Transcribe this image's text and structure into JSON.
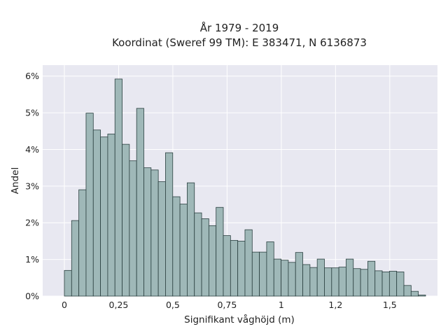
{
  "chart_data": {
    "type": "bar",
    "title_line1": "År 1979 - 2019",
    "title_line2": "Koordinat (Sweref 99 TM): E 383471, N 6136873",
    "xlabel": "Signifikant våghöjd (m)",
    "ylabel": "Andel",
    "xlim": [
      -0.1,
      1.72
    ],
    "ylim": [
      0,
      6.3
    ],
    "bin_width": 0.0333,
    "bin_start": 0.0,
    "x_ticks": [
      {
        "value": 0,
        "label": "0"
      },
      {
        "value": 0.25,
        "label": "0,25"
      },
      {
        "value": 0.5,
        "label": "0,5"
      },
      {
        "value": 0.75,
        "label": "0,75"
      },
      {
        "value": 1.0,
        "label": "1"
      },
      {
        "value": 1.25,
        "label": "1,2"
      },
      {
        "value": 1.5,
        "label": "1,5"
      }
    ],
    "y_ticks": [
      {
        "value": 0,
        "label": "0%"
      },
      {
        "value": 1,
        "label": "1%"
      },
      {
        "value": 2,
        "label": "2%"
      },
      {
        "value": 3,
        "label": "3%"
      },
      {
        "value": 4,
        "label": "4%"
      },
      {
        "value": 5,
        "label": "5%"
      },
      {
        "value": 6,
        "label": "6%"
      }
    ],
    "values": [
      0.7,
      2.06,
      2.9,
      4.99,
      4.53,
      4.34,
      4.42,
      5.92,
      4.14,
      3.69,
      5.12,
      3.5,
      3.44,
      3.12,
      3.91,
      2.71,
      2.51,
      3.09,
      2.27,
      2.11,
      1.92,
      2.42,
      1.65,
      1.52,
      1.5,
      1.81,
      1.2,
      1.2,
      1.48,
      1.01,
      0.98,
      0.92,
      1.19,
      0.86,
      0.78,
      1.01,
      0.77,
      0.77,
      0.79,
      1.01,
      0.75,
      0.73,
      0.95,
      0.69,
      0.66,
      0.68,
      0.66,
      0.29,
      0.13,
      0.03
    ],
    "grid": true,
    "colors": {
      "bar_fill": "#9fb8b8",
      "bar_stroke": "#2a3f3f",
      "plot_bg": "#e8e8f1",
      "grid": "#ffffff"
    }
  }
}
